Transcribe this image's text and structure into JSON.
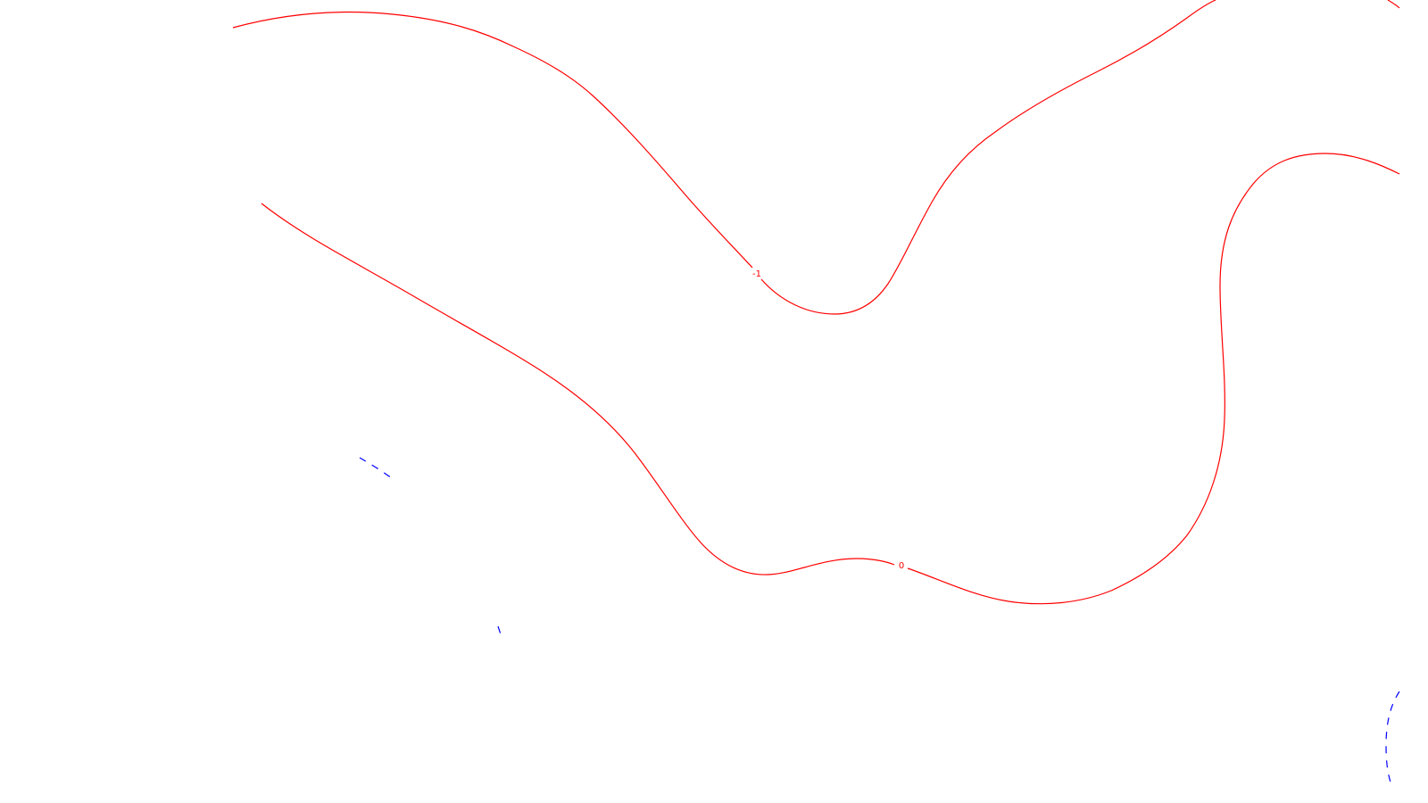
{
  "contours": [
    {
      "label": "-1",
      "color": "#ff0000",
      "style": "solid"
    },
    {
      "label": "0",
      "color": "#ff0000",
      "style": "solid"
    },
    {
      "color": "#ff0000",
      "style": "solid"
    },
    {
      "color": "#ff0000",
      "style": "solid"
    },
    {
      "color": "#0000ff",
      "style": "dashed"
    },
    {
      "color": "#0000ff",
      "style": "dashed"
    },
    {
      "color": "#0000ff",
      "style": "dashed"
    }
  ]
}
